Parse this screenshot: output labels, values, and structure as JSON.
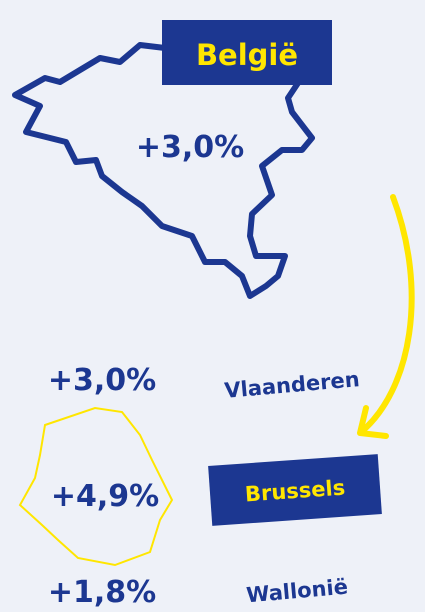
{
  "map": {
    "title": "België",
    "value": "+3,0%"
  },
  "regions": [
    {
      "name": "Vlaanderen",
      "value": "+3,0%"
    },
    {
      "name": "Brussels",
      "value": "+4,9%"
    },
    {
      "name": "Wallonië",
      "value": "+1,8%"
    }
  ]
}
